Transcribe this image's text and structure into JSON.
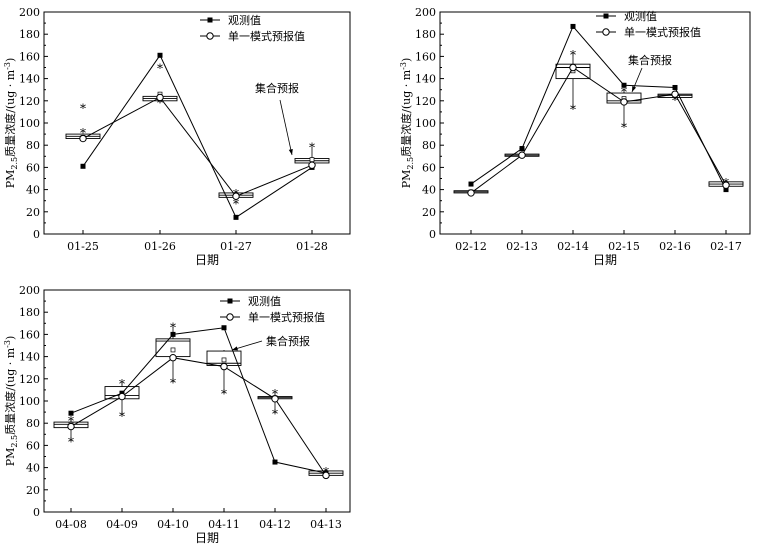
{
  "chart_data": [
    {
      "type": "line",
      "title": "",
      "xlabel": "日期",
      "ylabel": "PM2.5质量浓度/(ug·m-3)",
      "ylabel_parts": {
        "pre": "PM",
        "sub": "2.5",
        "mid": "质量浓度/(ug · m",
        "sup": "-3",
        "post": ")"
      },
      "ylim": [
        0,
        200
      ],
      "yticks": [
        0,
        20,
        40,
        60,
        80,
        100,
        120,
        140,
        160,
        180,
        200
      ],
      "categories": [
        "01-25",
        "01-26",
        "01-27",
        "01-28"
      ],
      "series": [
        {
          "name": "观测值",
          "marker": "square",
          "values": [
            61,
            161,
            15,
            60
          ]
        },
        {
          "name": "单一模式预报值",
          "marker": "circle",
          "values": [
            86,
            123,
            34,
            62
          ]
        }
      ],
      "boxes": [
        {
          "q1": 86,
          "median": 88,
          "q3": 90,
          "mean": 87,
          "whisker_low": 86,
          "whisker_high": 90,
          "outliers": [
            92,
            114
          ]
        },
        {
          "q1": 120,
          "median": 122,
          "q3": 124,
          "mean": 126,
          "whisker_low": 118,
          "whisker_high": 128,
          "outliers": [
            150,
            119
          ]
        },
        {
          "q1": 33,
          "median": 35,
          "q3": 37,
          "mean": 35,
          "whisker_low": 32,
          "whisker_high": 38,
          "outliers": [
            28,
            37
          ]
        },
        {
          "q1": 64,
          "median": 66,
          "q3": 68,
          "mean": 67,
          "whisker_low": 63,
          "whisker_high": 78,
          "outliers": [
            79
          ]
        }
      ],
      "legend": {
        "items": [
          "观测值",
          "单一模式预报值"
        ],
        "position": "top-right"
      },
      "annotation": "集合预报"
    },
    {
      "type": "line",
      "title": "",
      "xlabel": "日期",
      "ylabel": "PM2.5质量浓度/(ug·m-3)",
      "ylabel_parts": {
        "pre": "PM",
        "sub": "2.5",
        "mid": "质量浓度/(ug · m",
        "sup": "-3",
        "post": ")"
      },
      "ylim": [
        0,
        200
      ],
      "yticks": [
        0,
        20,
        40,
        60,
        80,
        100,
        120,
        140,
        160,
        180,
        200
      ],
      "categories": [
        "02-12",
        "02-13",
        "02-14",
        "02-15",
        "02-16",
        "02-17"
      ],
      "series": [
        {
          "name": "观测值",
          "marker": "square",
          "values": [
            45,
            77,
            187,
            134,
            132,
            40
          ]
        },
        {
          "name": "单一模式预报值",
          "marker": "circle",
          "values": [
            37,
            71,
            150,
            119,
            126,
            44
          ]
        }
      ],
      "boxes": [
        {
          "q1": 37,
          "median": 38,
          "q3": 39,
          "mean": 38,
          "whisker_low": 36,
          "whisker_high": 40,
          "outliers": []
        },
        {
          "q1": 70,
          "median": 71,
          "q3": 72,
          "mean": 71,
          "whisker_low": 69,
          "whisker_high": 73,
          "outliers": [
            75
          ]
        },
        {
          "q1": 140,
          "median": 150,
          "q3": 153,
          "mean": 147,
          "whisker_low": 113,
          "whisker_high": 162,
          "outliers": [
            113,
            162
          ]
        },
        {
          "q1": 118,
          "median": 120,
          "q3": 127,
          "mean": 122,
          "whisker_low": 97,
          "whisker_high": 128,
          "outliers": [
            97,
            129
          ]
        },
        {
          "q1": 123,
          "median": 125,
          "q3": 126,
          "mean": 125,
          "whisker_low": 121,
          "whisker_high": 127,
          "outliers": [
            121
          ]
        },
        {
          "q1": 43,
          "median": 45,
          "q3": 47,
          "mean": 45,
          "whisker_low": 42,
          "whisker_high": 47,
          "outliers": [
            47
          ]
        }
      ],
      "legend": {
        "items": [
          "观测值",
          "单一模式预报值"
        ],
        "position": "top-right"
      },
      "annotation": "集合预报"
    },
    {
      "type": "line",
      "title": "",
      "xlabel": "日期",
      "ylabel": "PM2.5质量浓度/(ug·m-3)",
      "ylabel_parts": {
        "pre": "PM",
        "sub": "2.5",
        "mid": "质量浓度/(ug · m",
        "sup": "-3",
        "post": ")"
      },
      "ylim": [
        0,
        200
      ],
      "yticks": [
        0,
        20,
        40,
        60,
        80,
        100,
        120,
        140,
        160,
        180,
        200
      ],
      "categories": [
        "04-08",
        "04-09",
        "04-10",
        "04-11",
        "04-12",
        "04-13"
      ],
      "series": [
        {
          "name": "观测值",
          "marker": "square",
          "values": [
            89,
            107,
            160,
            166,
            45,
            35
          ]
        },
        {
          "name": "单一模式预报值",
          "marker": "circle",
          "values": [
            77,
            104,
            139,
            131,
            102,
            33
          ]
        }
      ],
      "boxes": [
        {
          "q1": 76,
          "median": 79,
          "q3": 81,
          "mean": 79,
          "whisker_low": 64,
          "whisker_high": 83,
          "outliers": [
            64,
            83
          ]
        },
        {
          "q1": 102,
          "median": 105,
          "q3": 113,
          "mean": 107,
          "whisker_low": 87,
          "whisker_high": 116,
          "outliers": [
            87,
            116
          ]
        },
        {
          "q1": 140,
          "median": 154,
          "q3": 156,
          "mean": 146,
          "whisker_low": 117,
          "whisker_high": 167,
          "outliers": [
            117,
            167
          ]
        },
        {
          "q1": 132,
          "median": 134,
          "q3": 145,
          "mean": 137,
          "whisker_low": 107,
          "whisker_high": 146,
          "outliers": [
            107
          ]
        },
        {
          "q1": 102,
          "median": 103,
          "q3": 104,
          "mean": 103,
          "whisker_low": 89,
          "whisker_high": 107,
          "outliers": [
            89,
            107
          ]
        },
        {
          "q1": 33,
          "median": 35,
          "q3": 37,
          "mean": 35,
          "whisker_low": 32,
          "whisker_high": 38,
          "outliers": [
            37
          ]
        }
      ],
      "legend": {
        "items": [
          "观测值",
          "单一模式预报值"
        ],
        "position": "top-right"
      },
      "annotation": "集合预报"
    }
  ]
}
